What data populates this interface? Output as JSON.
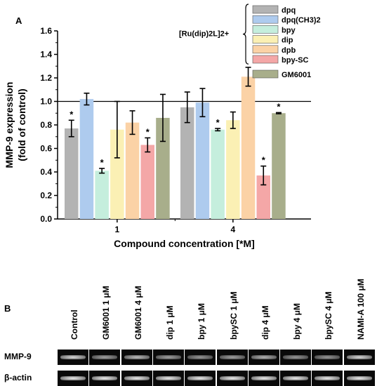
{
  "panel_a": {
    "label": "A"
  },
  "panel_b": {
    "label": "B"
  },
  "chart_data": {
    "type": "bar",
    "xlabel": "Compound concentration [*M]",
    "ylabel": "MMP-9 expression\n(fold of control)",
    "ylim": [
      0,
      1.6
    ],
    "yticks": [
      "0.0",
      "0.2",
      "0.4",
      "0.6",
      "0.8",
      "1.0",
      "1.2",
      "1.4",
      "1.6"
    ],
    "reference_line": 1.0,
    "grid": false,
    "legend_placement": "top-right",
    "legend_group_label": "[Ru(dip)2L]2+",
    "categories": [
      "1",
      "4"
    ],
    "series": [
      {
        "name": "dpq",
        "color": "#b3b3b3",
        "values": [
          0.77,
          0.95
        ],
        "errors": [
          0.07,
          0.13
        ],
        "sig": [
          true,
          false
        ]
      },
      {
        "name": "dpq(CH3)2",
        "color": "#aecbee",
        "values": [
          1.02,
          0.99
        ],
        "errors": [
          0.05,
          0.12
        ],
        "sig": [
          false,
          false
        ]
      },
      {
        "name": "bpy",
        "color": "#c5eedd",
        "values": [
          0.41,
          0.76
        ],
        "errors": [
          0.02,
          0.01
        ],
        "sig": [
          true,
          true
        ]
      },
      {
        "name": "dip",
        "color": "#fbf0b4",
        "values": [
          0.76,
          0.84
        ],
        "errors": [
          0.24,
          0.07
        ],
        "sig": [
          false,
          false
        ]
      },
      {
        "name": "dpb",
        "color": "#fbd2a6",
        "values": [
          0.82,
          1.21
        ],
        "errors": [
          0.1,
          0.08
        ],
        "sig": [
          false,
          false
        ]
      },
      {
        "name": "bpy-SC",
        "color": "#f4a7a7",
        "values": [
          0.63,
          0.37
        ],
        "errors": [
          0.06,
          0.08
        ],
        "sig": [
          true,
          true
        ]
      },
      {
        "name": "GM6001",
        "color": "#a8ae8b",
        "values": [
          0.86,
          0.9
        ],
        "errors": [
          0.2,
          0.005
        ],
        "sig": [
          false,
          true
        ]
      }
    ],
    "significance_marker": "*"
  },
  "blot": {
    "lanes": [
      "Control",
      "GM6001 1 μM",
      "GM6001 4 μM",
      "dip 1 μM",
      "bpy 1 μM",
      "bpySC 1 μM",
      "dip 4 μM",
      "bpy 4 μM",
      "bpySC 4 μM",
      "NAMI-A 100 μM"
    ],
    "rows": [
      {
        "label": "MMP-9",
        "intensity": [
          0.85,
          0.55,
          0.7,
          0.55,
          0.5,
          0.55,
          0.65,
          0.5,
          0.5,
          0.85
        ]
      },
      {
        "label": "β-actin",
        "intensity": [
          0.95,
          0.95,
          0.95,
          0.95,
          0.95,
          0.95,
          0.95,
          0.95,
          0.95,
          0.95
        ]
      }
    ]
  }
}
